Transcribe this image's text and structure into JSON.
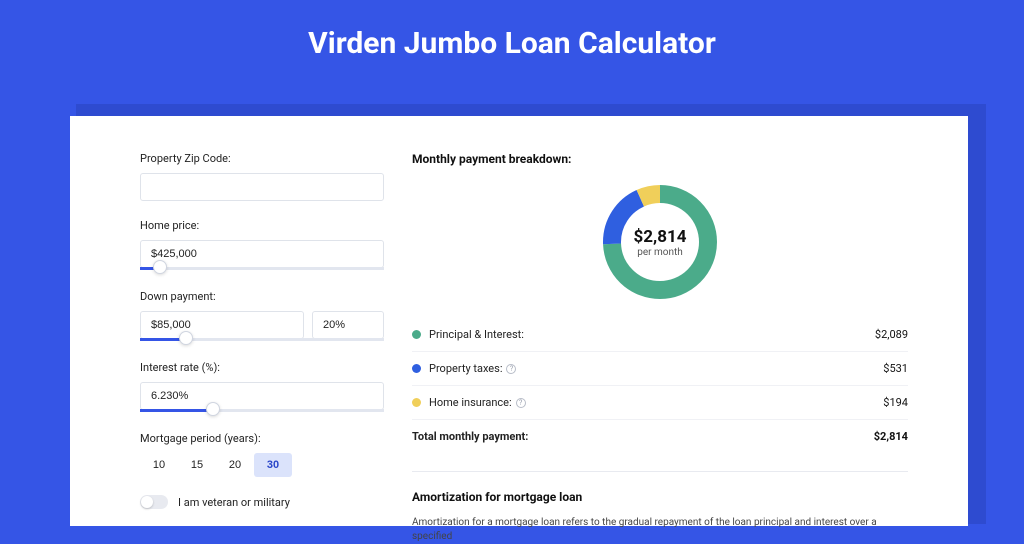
{
  "page": {
    "title": "Virden Jumbo Loan Calculator",
    "background_color": "#3555e6",
    "shadow_color": "#2e4bd0",
    "card_color": "#ffffff"
  },
  "form": {
    "zip": {
      "label": "Property Zip Code:",
      "value": ""
    },
    "home_price": {
      "label": "Home price:",
      "value": "$425,000",
      "slider_pct": 8
    },
    "down_payment": {
      "label": "Down payment:",
      "amount": "$85,000",
      "percent": "20%",
      "slider_pct": 19
    },
    "interest_rate": {
      "label": "Interest rate (%):",
      "value": "6.230%",
      "slider_pct": 30
    },
    "mortgage_period": {
      "label": "Mortgage period (years):",
      "options": [
        "10",
        "15",
        "20",
        "30"
      ],
      "selected": "30"
    },
    "veteran": {
      "label": "I am veteran or military",
      "checked": false
    }
  },
  "breakdown": {
    "title": "Monthly payment breakdown:",
    "center_value": "$2,814",
    "center_sub": "per month",
    "donut": {
      "radius": 48,
      "stroke_width": 18,
      "slices": [
        {
          "key": "principal_interest",
          "color": "#4bab8a",
          "value": 2089
        },
        {
          "key": "property_taxes",
          "color": "#2f5fe0",
          "value": 531
        },
        {
          "key": "home_insurance",
          "color": "#f0cf5a",
          "value": 194
        }
      ]
    },
    "rows": [
      {
        "label": "Principal & Interest:",
        "color": "#4bab8a",
        "amount": "$2,089",
        "info": false
      },
      {
        "label": "Property taxes:",
        "color": "#2f5fe0",
        "amount": "$531",
        "info": true
      },
      {
        "label": "Home insurance:",
        "color": "#f0cf5a",
        "amount": "$194",
        "info": true
      }
    ],
    "total": {
      "label": "Total monthly payment:",
      "amount": "$2,814"
    }
  },
  "amortization": {
    "title": "Amortization for mortgage loan",
    "text": "Amortization for a mortgage loan refers to the gradual repayment of the loan principal and interest over a specified"
  }
}
